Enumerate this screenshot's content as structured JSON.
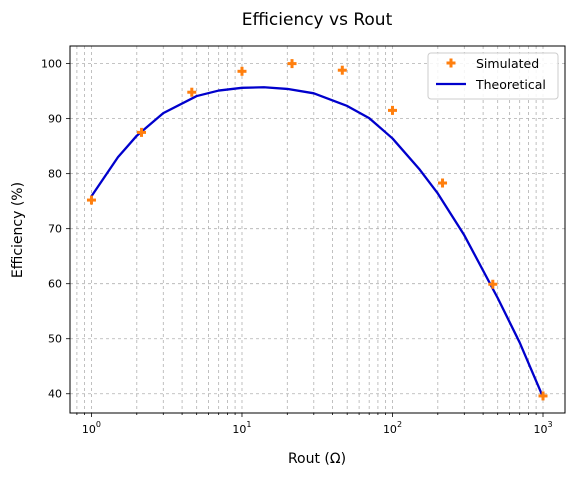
{
  "chart_data": {
    "type": "scatter+line",
    "title": "Efficiency vs Rout",
    "xlabel": "Rout (Ω)",
    "ylabel": "Efficiency (%)",
    "x_scale": "log",
    "xlim": [
      0.72,
      1400
    ],
    "ylim": [
      36.5,
      103.2
    ],
    "x_ticks": [
      {
        "value": 1,
        "base": "10",
        "exp": "0"
      },
      {
        "value": 10,
        "base": "10",
        "exp": "1"
      },
      {
        "value": 100,
        "base": "10",
        "exp": "2"
      },
      {
        "value": 1000,
        "base": "10",
        "exp": "3"
      }
    ],
    "y_ticks": [
      {
        "value": 40,
        "label": "40"
      },
      {
        "value": 50,
        "label": "50"
      },
      {
        "value": 60,
        "label": "60"
      },
      {
        "value": 70,
        "label": "70"
      },
      {
        "value": 80,
        "label": "80"
      },
      {
        "value": 90,
        "label": "90"
      },
      {
        "value": 100,
        "label": "100"
      }
    ],
    "grid": true,
    "legend_position": "top-right",
    "series": [
      {
        "name": "Simulated",
        "kind": "scatter",
        "marker": "plus",
        "color": "#ff7f0e",
        "x": [
          1.0,
          2.15,
          4.64,
          10.0,
          21.5,
          46.4,
          100,
          215,
          464,
          1000
        ],
        "y": [
          75.2,
          87.5,
          94.8,
          98.6,
          100.0,
          98.8,
          91.5,
          78.3,
          59.9,
          39.6
        ]
      },
      {
        "name": "Theoretical",
        "kind": "line",
        "color": "#0000cc",
        "x": [
          1.0,
          1.5,
          2.0,
          3.0,
          5.0,
          7.0,
          10.0,
          14.0,
          20.0,
          30.0,
          50.0,
          70.0,
          100,
          150,
          200,
          300,
          500,
          700,
          1000
        ],
        "y": [
          75.9,
          83.0,
          86.9,
          91.0,
          94.1,
          95.1,
          95.6,
          95.7,
          95.4,
          94.6,
          92.3,
          90.1,
          86.4,
          80.9,
          76.4,
          68.8,
          57.4,
          49.3,
          39.4
        ]
      }
    ]
  }
}
